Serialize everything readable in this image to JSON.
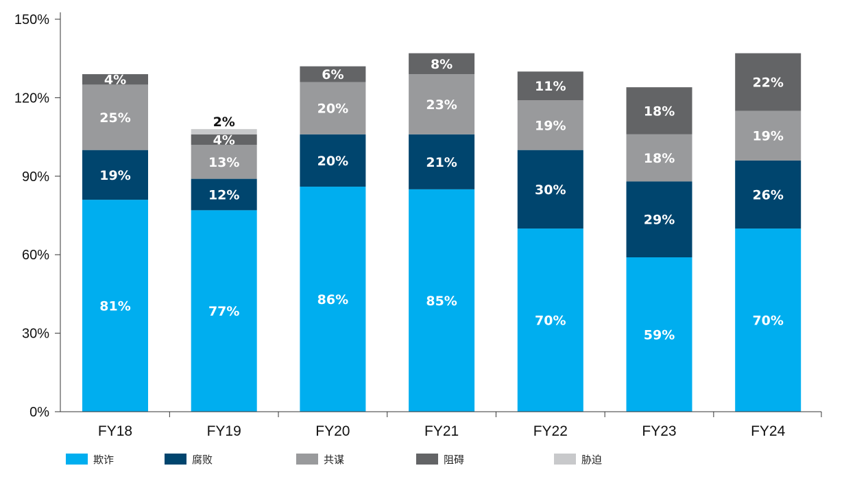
{
  "chart_data": {
    "type": "bar",
    "stacked": true,
    "categories": [
      "FY18",
      "FY19",
      "FY20",
      "FY21",
      "FY22",
      "FY23",
      "FY24"
    ],
    "ylim": [
      0,
      150
    ],
    "yticks": [
      0,
      30,
      60,
      90,
      120,
      150
    ],
    "ytick_labels": [
      "0%",
      "30%",
      "60%",
      "90%",
      "120%",
      "150%"
    ],
    "grid": false,
    "legend_position": "bottom",
    "series": [
      {
        "name": "欺诈",
        "color": "#00AEEF",
        "label_color": "#ffffff",
        "values": [
          81,
          77,
          86,
          85,
          70,
          59,
          70
        ],
        "labels": [
          "81%",
          "77%",
          "86%",
          "85%",
          "70%",
          "59%",
          "70%"
        ]
      },
      {
        "name": "腐败",
        "color": "#00456E",
        "label_color": "#ffffff",
        "values": [
          19,
          12,
          20,
          21,
          30,
          29,
          26
        ],
        "labels": [
          "19%",
          "12%",
          "20%",
          "21%",
          "30%",
          "29%",
          "26%"
        ]
      },
      {
        "name": "共谋",
        "color": "#999A9C",
        "label_color": "#ffffff",
        "values": [
          25,
          13,
          20,
          23,
          19,
          18,
          19
        ],
        "labels": [
          "25%",
          "13%",
          "20%",
          "23%",
          "19%",
          "18%",
          "19%"
        ]
      },
      {
        "name": "阻碍",
        "color": "#636466",
        "label_color": "#ffffff",
        "values": [
          4,
          4,
          6,
          8,
          11,
          18,
          22
        ],
        "labels": [
          "4%",
          "4%",
          "6%",
          "8%",
          "11%",
          "18%",
          "22%"
        ]
      },
      {
        "name": "胁迫",
        "color": "#C8C9CB",
        "label_color": "#111111",
        "values": [
          0,
          2,
          0,
          0,
          0,
          0,
          0
        ],
        "labels": [
          "",
          "2%",
          "",
          "",
          "",
          "",
          ""
        ]
      }
    ]
  }
}
